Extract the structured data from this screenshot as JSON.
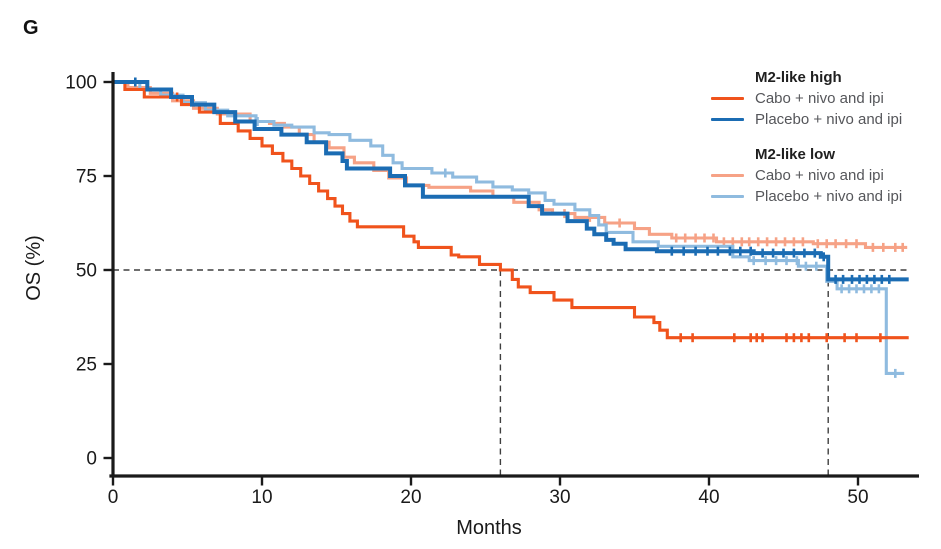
{
  "panel_label": "G",
  "axes": {
    "xlabel": "Months",
    "ylabel": "OS (%)",
    "x_ticks": [
      0,
      10,
      20,
      30,
      40,
      50
    ],
    "y_ticks": [
      0,
      25,
      50,
      75,
      100
    ]
  },
  "legend": {
    "groups": [
      {
        "title": "M2-like high",
        "items": [
          {
            "label": "Cabo + nivo and ipi",
            "color": "#F0531C"
          },
          {
            "label": "Placebo + nivo and ipi",
            "color": "#1B6CB3"
          }
        ]
      },
      {
        "title": "M2-like low",
        "items": [
          {
            "label": "Cabo + nivo and ipi",
            "color": "#F6A286"
          },
          {
            "label": "Placebo + nivo and ipi",
            "color": "#8FBBDF"
          }
        ]
      }
    ]
  },
  "colors": {
    "axis": "#1a1a1a",
    "dashed_reference": "#3f3f3f",
    "background": "#ffffff"
  },
  "chart_data": {
    "type": "line",
    "subtype": "kaplan_meier_step",
    "title": "",
    "xlabel": "Months",
    "ylabel": "OS (%)",
    "xlim": [
      0,
      54
    ],
    "ylim": [
      0,
      100
    ],
    "grid": false,
    "legend_position": "top-right",
    "dashed_reference": {
      "y_percent": 50,
      "x_months": [
        26,
        48
      ]
    },
    "draw_order": [
      2,
      3,
      0,
      1
    ],
    "series": [
      {
        "id": "m2-high-cabo",
        "name": "M2-like high — Cabo + nivo and ipi",
        "color": "#F0531C",
        "width": 3.1,
        "points": [
          [
            0,
            100
          ],
          [
            0.8,
            98
          ],
          [
            2.1,
            96
          ],
          [
            4.6,
            94
          ],
          [
            5.8,
            92
          ],
          [
            7.2,
            89
          ],
          [
            8.4,
            87
          ],
          [
            9.2,
            85
          ],
          [
            10,
            83
          ],
          [
            10.7,
            81
          ],
          [
            11.4,
            79
          ],
          [
            12,
            77
          ],
          [
            12.6,
            75
          ],
          [
            13.2,
            73
          ],
          [
            13.8,
            71
          ],
          [
            14.4,
            69
          ],
          [
            14.9,
            67
          ],
          [
            15.4,
            65
          ],
          [
            15.9,
            63
          ],
          [
            16.4,
            61.5
          ],
          [
            19.5,
            59
          ],
          [
            20.2,
            57.5
          ],
          [
            20.5,
            56
          ],
          [
            22.7,
            54
          ],
          [
            23.2,
            53.5
          ],
          [
            24.6,
            51.5
          ],
          [
            26,
            50
          ],
          [
            26.8,
            47.5
          ],
          [
            27.2,
            45.5
          ],
          [
            28,
            44
          ],
          [
            29.6,
            42
          ],
          [
            30.8,
            40
          ],
          [
            35,
            37.5
          ],
          [
            36.3,
            36
          ],
          [
            36.7,
            34
          ],
          [
            37.2,
            32
          ],
          [
            53.4,
            32
          ]
        ],
        "censors": [
          [
            4.3,
            96
          ],
          [
            38.1,
            32
          ],
          [
            38.9,
            32
          ],
          [
            41.7,
            32
          ],
          [
            42.8,
            32
          ],
          [
            43.2,
            32
          ],
          [
            43.6,
            32
          ],
          [
            45.2,
            32
          ],
          [
            45.7,
            32
          ],
          [
            46.2,
            32
          ],
          [
            46.7,
            32
          ],
          [
            47.9,
            32
          ],
          [
            49.1,
            32
          ],
          [
            49.9,
            32
          ],
          [
            51.5,
            32
          ]
        ]
      },
      {
        "id": "m2-high-placebo",
        "name": "M2-like high — Placebo + nivo and ipi",
        "color": "#1B6CB3",
        "width": 4,
        "points": [
          [
            0,
            100
          ],
          [
            2.3,
            98
          ],
          [
            3.9,
            96
          ],
          [
            5.3,
            94
          ],
          [
            6.8,
            92
          ],
          [
            8.2,
            89.5
          ],
          [
            9.5,
            87.5
          ],
          [
            11.3,
            86
          ],
          [
            13,
            84
          ],
          [
            14.3,
            81
          ],
          [
            15.4,
            79
          ],
          [
            15.7,
            77
          ],
          [
            18.6,
            75
          ],
          [
            19.6,
            72.5
          ],
          [
            20.8,
            69.5
          ],
          [
            27.9,
            67
          ],
          [
            28.8,
            65
          ],
          [
            30.5,
            63
          ],
          [
            31.8,
            61
          ],
          [
            32.3,
            59.5
          ],
          [
            33.1,
            58
          ],
          [
            33.6,
            57
          ],
          [
            34.4,
            55.5
          ],
          [
            36.5,
            55
          ],
          [
            43,
            54.5
          ],
          [
            47.5,
            53.5
          ],
          [
            48,
            47.5
          ],
          [
            53.4,
            47.5
          ]
        ],
        "censors": [
          [
            1.5,
            100
          ],
          [
            37.5,
            55
          ],
          [
            38.3,
            55
          ],
          [
            39.1,
            55
          ],
          [
            39.9,
            55
          ],
          [
            40.6,
            55
          ],
          [
            41.4,
            55
          ],
          [
            42.1,
            55
          ],
          [
            42.8,
            55
          ],
          [
            43.6,
            54.5
          ],
          [
            44.3,
            54.5
          ],
          [
            45,
            54.5
          ],
          [
            45.7,
            54.5
          ],
          [
            46.4,
            54.5
          ],
          [
            47.1,
            54.5
          ],
          [
            47.7,
            53.5
          ],
          [
            48.5,
            47.5
          ],
          [
            49,
            47.5
          ],
          [
            49.6,
            47.5
          ],
          [
            50.1,
            47.5
          ],
          [
            50.6,
            47.5
          ],
          [
            51.1,
            47.5
          ],
          [
            51.6,
            47.5
          ],
          [
            52.1,
            47.5
          ]
        ]
      },
      {
        "id": "m2-low-cabo",
        "name": "M2-like low — Cabo + nivo and ipi",
        "color": "#F6A286",
        "width": 3.1,
        "points": [
          [
            0,
            100
          ],
          [
            1,
            98.5
          ],
          [
            2.5,
            97
          ],
          [
            4,
            95
          ],
          [
            5.4,
            93
          ],
          [
            7,
            91.5
          ],
          [
            9.2,
            89.5
          ],
          [
            10.5,
            89
          ],
          [
            11.5,
            88
          ],
          [
            12.5,
            86
          ],
          [
            13.5,
            84
          ],
          [
            14.5,
            82.5
          ],
          [
            15.5,
            80
          ],
          [
            16.2,
            78.5
          ],
          [
            17.5,
            76.5
          ],
          [
            18.5,
            74.5
          ],
          [
            19.7,
            72.5
          ],
          [
            21.2,
            72
          ],
          [
            24,
            71
          ],
          [
            25.5,
            69.5
          ],
          [
            26.9,
            68
          ],
          [
            28.6,
            66
          ],
          [
            29.5,
            65
          ],
          [
            31,
            64
          ],
          [
            33,
            62.5
          ],
          [
            35,
            61
          ],
          [
            36,
            59.5
          ],
          [
            37.5,
            58.5
          ],
          [
            40.5,
            57.5
          ],
          [
            47,
            57
          ],
          [
            50.5,
            56
          ],
          [
            53.3,
            56
          ]
        ],
        "censors": [
          [
            30.3,
            65
          ],
          [
            32,
            64
          ],
          [
            34,
            62.5
          ],
          [
            37.8,
            58.5
          ],
          [
            38.4,
            58.5
          ],
          [
            39.1,
            58.5
          ],
          [
            39.7,
            58.5
          ],
          [
            40.3,
            58.5
          ],
          [
            41,
            57.5
          ],
          [
            41.6,
            57.5
          ],
          [
            42.2,
            57.5
          ],
          [
            42.7,
            57.5
          ],
          [
            43.3,
            57.5
          ],
          [
            43.9,
            57.5
          ],
          [
            44.5,
            57.5
          ],
          [
            45.1,
            57.5
          ],
          [
            45.7,
            57.5
          ],
          [
            46.3,
            57.5
          ],
          [
            47.3,
            57
          ],
          [
            47.9,
            57
          ],
          [
            48.5,
            57
          ],
          [
            49.2,
            57
          ],
          [
            49.9,
            57
          ],
          [
            51,
            56
          ],
          [
            51.7,
            56
          ],
          [
            52.5,
            56
          ],
          [
            53,
            56
          ]
        ]
      },
      {
        "id": "m2-low-placebo",
        "name": "M2-like low — Placebo + nivo and ipi",
        "color": "#8FBBDF",
        "width": 3.1,
        "points": [
          [
            0,
            100
          ],
          [
            1.8,
            98
          ],
          [
            3.2,
            96.5
          ],
          [
            4.7,
            94.5
          ],
          [
            6.2,
            92.5
          ],
          [
            7.7,
            91
          ],
          [
            9.6,
            89.5
          ],
          [
            10.8,
            88.5
          ],
          [
            12,
            88
          ],
          [
            13.5,
            86.5
          ],
          [
            14.5,
            86
          ],
          [
            15.9,
            84.5
          ],
          [
            17.3,
            83
          ],
          [
            18.1,
            80.5
          ],
          [
            18.8,
            78.5
          ],
          [
            19.4,
            77
          ],
          [
            21.4,
            75.8
          ],
          [
            22.8,
            74.7
          ],
          [
            24.4,
            73.4
          ],
          [
            25.5,
            72.1
          ],
          [
            26.8,
            71.3
          ],
          [
            27.9,
            70.5
          ],
          [
            29,
            68.5
          ],
          [
            29.6,
            67.5
          ],
          [
            31,
            66
          ],
          [
            32,
            64.5
          ],
          [
            32.6,
            62
          ],
          [
            33.1,
            60
          ],
          [
            34.9,
            57.5
          ],
          [
            36.6,
            56.3
          ],
          [
            41.6,
            53.5
          ],
          [
            42.7,
            52.5
          ],
          [
            46,
            51
          ],
          [
            47.9,
            47
          ],
          [
            48.6,
            45
          ],
          [
            51.9,
            22.5
          ],
          [
            53.1,
            22.5
          ]
        ],
        "censors": [
          [
            9.7,
            89.5
          ],
          [
            22.3,
            75.8
          ],
          [
            43,
            52.5
          ],
          [
            43.8,
            52.5
          ],
          [
            44.5,
            52.5
          ],
          [
            45.2,
            52.5
          ],
          [
            45.9,
            52.5
          ],
          [
            46.5,
            51
          ],
          [
            47.2,
            51
          ],
          [
            48.9,
            45
          ],
          [
            49.4,
            45
          ],
          [
            49.9,
            45
          ],
          [
            50.4,
            45
          ],
          [
            50.9,
            45
          ],
          [
            51.4,
            45
          ],
          [
            52.5,
            22.5
          ]
        ]
      }
    ]
  }
}
